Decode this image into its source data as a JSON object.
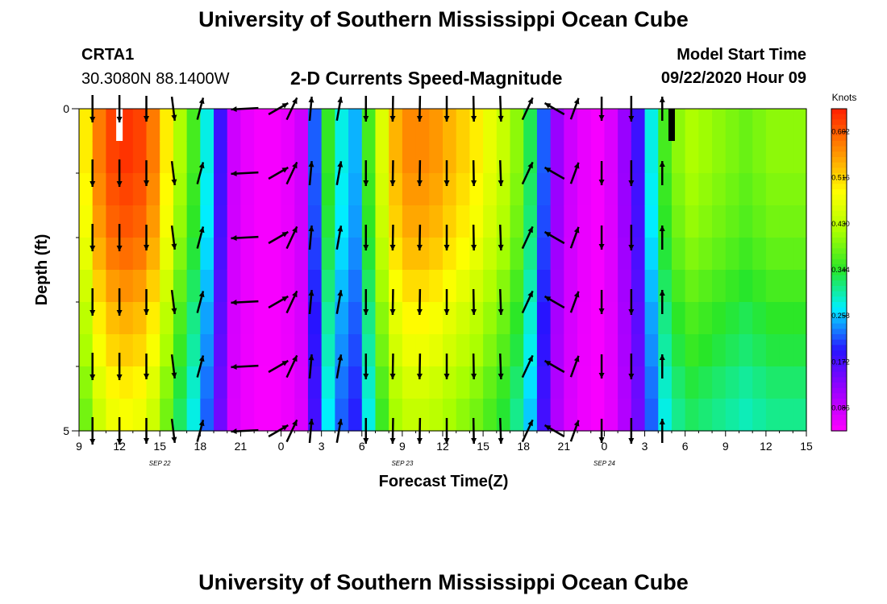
{
  "header": {
    "title": "University of Southern Mississippi Ocean Cube",
    "footer_title": "University of Southern Mississippi Ocean Cube",
    "station": "CRTA1",
    "coordinates": "30.3080N 88.1400W",
    "chart_title": "2-D Currents Speed-Magnitude",
    "model_start_label": "Model Start Time",
    "model_start_value": "09/22/2020 Hour 09"
  },
  "chart_data": {
    "type": "heatmap",
    "title": "2-D Currents Speed-Magnitude",
    "xlabel": "Forecast Time(Z)",
    "ylabel": "Depth (ft)",
    "ylim": [
      0,
      5
    ],
    "y_ticks": [
      "0",
      "5"
    ],
    "x_tick_labels": [
      "9",
      "12",
      "15",
      "18",
      "21",
      "0",
      "3",
      "6",
      "9",
      "12",
      "15",
      "18",
      "21",
      "0",
      "3",
      "6",
      "9",
      "12",
      "15"
    ],
    "date_labels": [
      {
        "text": "SEP 22",
        "hour_index": 4
      },
      {
        "text": "SEP 23",
        "hour_index": 16
      },
      {
        "text": "SEP 24",
        "hour_index": 26
      }
    ],
    "forecast_hours": 54,
    "colorbar": {
      "units": "Knots",
      "min": 0.043,
      "max": 0.645,
      "tick_values": [
        "0.602",
        "0.516",
        "0.430",
        "0.344",
        "0.258",
        "0.172",
        "0.086"
      ]
    },
    "speed_profile": [
      0.5,
      0.58,
      0.62,
      0.63,
      0.62,
      0.58,
      0.5,
      0.42,
      0.36,
      0.28,
      0.18,
      0.08,
      0.06,
      0.05,
      0.05,
      0.06,
      0.08,
      0.22,
      0.35,
      0.28,
      0.25,
      0.36,
      0.46,
      0.54,
      0.57,
      0.57,
      0.56,
      0.54,
      0.52,
      0.5,
      0.47,
      0.44,
      0.4,
      0.33,
      0.22,
      0.12,
      0.08,
      0.06,
      0.05,
      0.07,
      0.12,
      0.18,
      0.28,
      0.36,
      0.4,
      0.42,
      0.41,
      0.4,
      0.39,
      0.38,
      0.39,
      0.4,
      0.4,
      0.4
    ],
    "depth_factor": [
      1.0,
      1.0,
      0.98,
      0.96,
      0.93,
      0.89,
      0.85,
      0.82,
      0.78,
      0.75
    ],
    "vector_rows": 6,
    "vector_columns": [
      {
        "hour": 1.0,
        "dir_deg": 180,
        "length": 0.85
      },
      {
        "hour": 3.0,
        "dir_deg": 180,
        "length": 0.85
      },
      {
        "hour": 5.0,
        "dir_deg": 180,
        "length": 0.8
      },
      {
        "hour": 7.0,
        "dir_deg": 173,
        "length": 0.75
      },
      {
        "hour": 9.0,
        "dir_deg": 15,
        "length": 0.7
      },
      {
        "hour": 12.3,
        "dir_deg": 267,
        "length": 0.85
      },
      {
        "hour": 14.8,
        "dir_deg": 60,
        "length": 0.7
      },
      {
        "hour": 15.8,
        "dir_deg": 25,
        "length": 0.75
      },
      {
        "hour": 17.2,
        "dir_deg": 5,
        "length": 0.75
      },
      {
        "hour": 19.3,
        "dir_deg": 10,
        "length": 0.75
      },
      {
        "hour": 21.3,
        "dir_deg": 180,
        "length": 0.8
      },
      {
        "hour": 23.3,
        "dir_deg": 181,
        "length": 0.8
      },
      {
        "hour": 25.3,
        "dir_deg": 181,
        "length": 0.8
      },
      {
        "hour": 27.3,
        "dir_deg": 180,
        "length": 0.8
      },
      {
        "hour": 29.3,
        "dir_deg": 179,
        "length": 0.8
      },
      {
        "hour": 31.3,
        "dir_deg": 178,
        "length": 0.8
      },
      {
        "hour": 33.3,
        "dir_deg": 25,
        "length": 0.75
      },
      {
        "hour": 35.3,
        "dir_deg": 300,
        "length": 0.7
      },
      {
        "hour": 36.8,
        "dir_deg": 20,
        "length": 0.7
      },
      {
        "hour": 38.8,
        "dir_deg": 180,
        "length": 0.75
      },
      {
        "hour": 41.0,
        "dir_deg": 180,
        "length": 0.8
      },
      {
        "hour": 43.3,
        "dir_deg": 0,
        "length": 0.75
      }
    ],
    "missing_bars": [
      {
        "hour": 3.0,
        "color": "#ffffff"
      },
      {
        "hour": 44.0,
        "color": "#000000"
      }
    ]
  }
}
